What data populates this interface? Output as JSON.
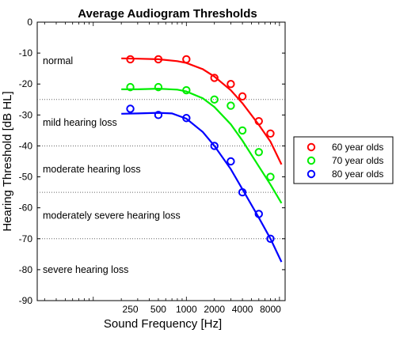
{
  "chart_data": {
    "type": "line",
    "title": "Average Audiogram Thresholds",
    "xlabel": "Sound Frequency [Hz]",
    "ylabel": "Hearing Threshold [dB HL]",
    "x_scale": "log",
    "xlim": [
      25,
      11500
    ],
    "ylim": [
      -90,
      0
    ],
    "x_ticks": [
      250,
      500,
      1000,
      2000,
      4000,
      8000
    ],
    "x_tick_labels": [
      "250",
      "500",
      "1000",
      "2000",
      "4000",
      "8000"
    ],
    "y_ticks": [
      0,
      -10,
      -20,
      -30,
      -40,
      -50,
      -60,
      -70,
      -80,
      -90
    ],
    "y_tick_labels": [
      "0",
      "-10",
      "-20",
      "-30",
      "-40",
      "-50",
      "-60",
      "-70",
      "-80",
      "-90"
    ],
    "categories": [
      250,
      500,
      1000,
      2000,
      3000,
      4000,
      6000,
      8000
    ],
    "series": [
      {
        "name": "60 year olds",
        "color": "#ff0000",
        "values": [
          -12,
          -12,
          -12,
          -18,
          -20,
          -24,
          -32,
          -36
        ],
        "fit_x": [
          200,
          300,
          500,
          800,
          1000,
          1500,
          2000,
          3000,
          4000,
          6000,
          8000,
          10500
        ],
        "fit_y": [
          -11.7,
          -11.8,
          -12,
          -12.6,
          -13.2,
          -15.2,
          -17.6,
          -22,
          -26.2,
          -33.2,
          -38.6,
          -46
        ]
      },
      {
        "name": "70 year olds",
        "color": "#00ee00",
        "values": [
          -21,
          -21,
          -22,
          -25,
          -27,
          -35,
          -42,
          -50
        ],
        "fit_x": [
          200,
          300,
          500,
          800,
          1000,
          1500,
          2000,
          3000,
          4000,
          6000,
          8000,
          10500
        ],
        "fit_y": [
          -21.7,
          -21.7,
          -21.5,
          -21.8,
          -22.4,
          -24.6,
          -27.4,
          -33,
          -38.3,
          -46.6,
          -52.5,
          -58.5
        ]
      },
      {
        "name": "80 year olds",
        "color": "#0000ff",
        "values": [
          -28,
          -30,
          -31,
          -40,
          -45,
          -55,
          -62,
          -70
        ],
        "fit_x": [
          200,
          300,
          500,
          700,
          1000,
          1500,
          2000,
          3000,
          4000,
          6000,
          8000,
          10500
        ],
        "fit_y": [
          -29.6,
          -29.5,
          -29.3,
          -29.5,
          -31.2,
          -35.5,
          -40,
          -47.5,
          -54,
          -63.2,
          -70,
          -77.5
        ]
      }
    ],
    "bands": [
      {
        "label": "normal",
        "boundary": -25
      },
      {
        "label": "mild hearing loss",
        "boundary": -40
      },
      {
        "label": "moderate hearing loss",
        "boundary": -55
      },
      {
        "label": "moderately severe hearing loss",
        "boundary": -70
      },
      {
        "label": "severe hearing loss",
        "boundary": -90
      }
    ],
    "legend_position": "right"
  }
}
